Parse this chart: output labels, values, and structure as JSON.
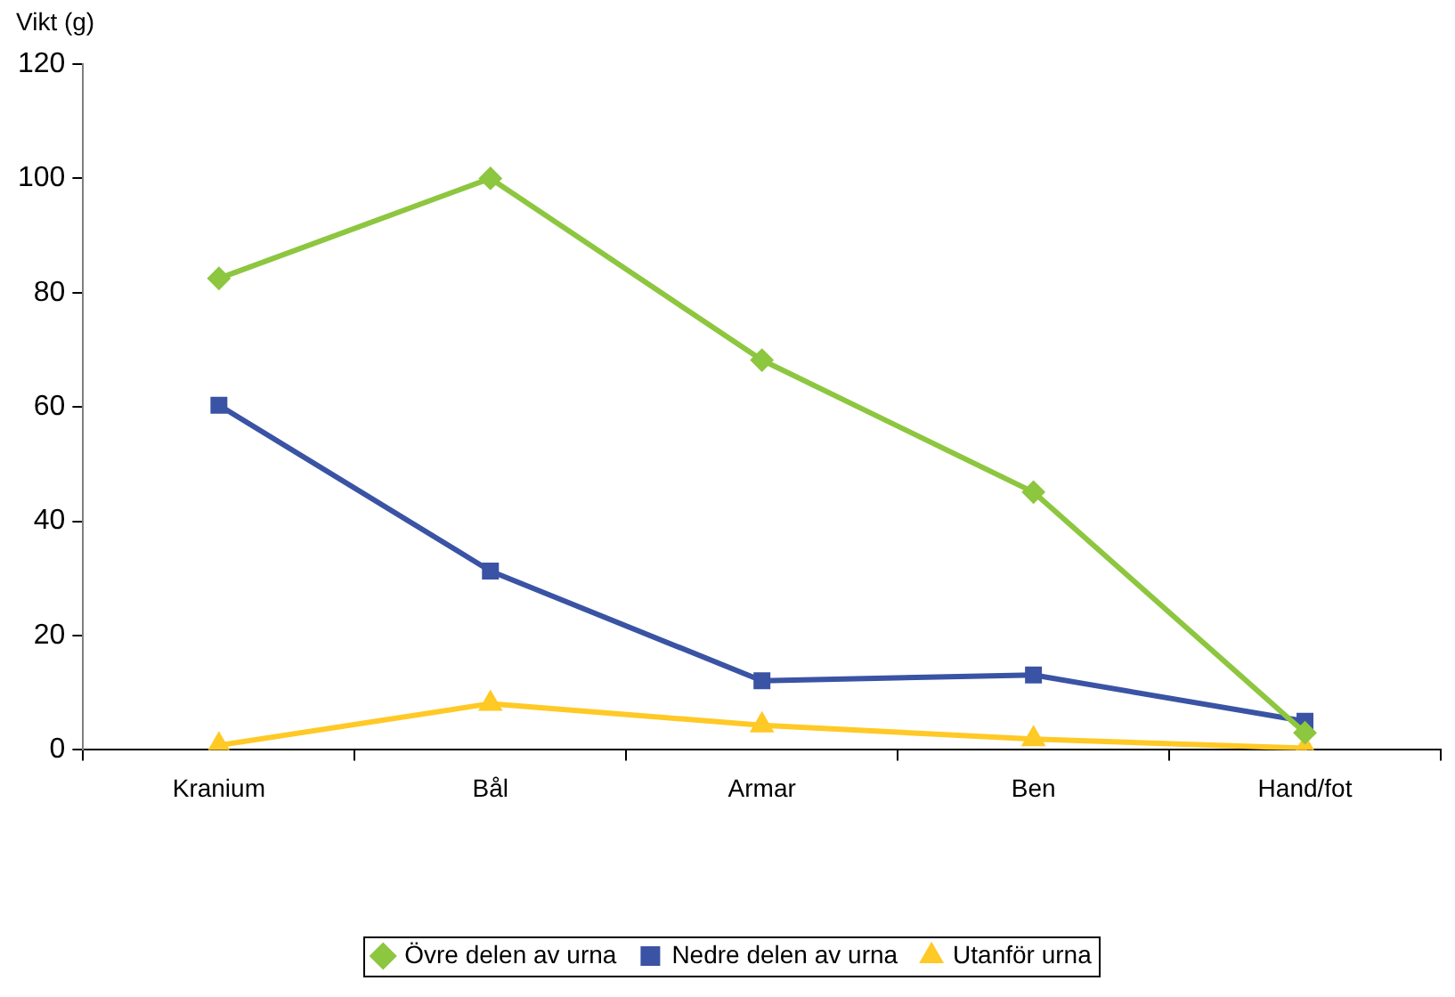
{
  "chart_data": {
    "type": "line",
    "ylabel": "Vikt (g)",
    "categories": [
      "Kranium",
      "Bål",
      "Armar",
      "Ben",
      "Hand/fot"
    ],
    "series": [
      {
        "name": "Övre delen av urna",
        "color": "#8dc63f",
        "marker": "diamond",
        "values": [
          82.5,
          100,
          68.2,
          45.1,
          3
        ]
      },
      {
        "name": "Nedre delen av urna",
        "color": "#3a53a4",
        "marker": "square",
        "values": [
          60.3,
          31.3,
          12.1,
          13.1,
          5
        ]
      },
      {
        "name": "Utanför urna",
        "color": "#ffc926",
        "marker": "triangle",
        "values": [
          0.8,
          8.1,
          4.3,
          1.9,
          0.3
        ]
      }
    ],
    "ylim": [
      0,
      120
    ],
    "yticks": [
      0,
      20,
      40,
      60,
      80,
      100,
      120
    ],
    "grid": false,
    "legend": "bottom",
    "line_style": "solid"
  }
}
